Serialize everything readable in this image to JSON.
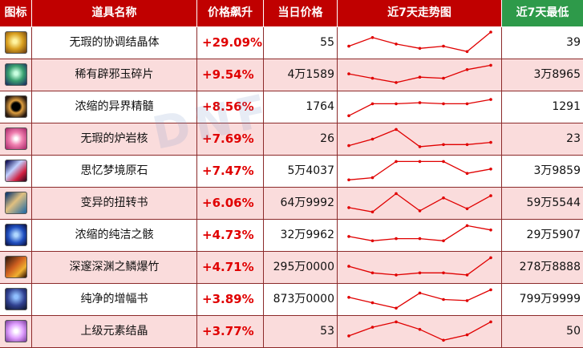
{
  "colors": {
    "header_bg": "#c00000",
    "header_last_bg": "#2e9a4a",
    "row_pink": "#fadcdc",
    "row_white": "#ffffff",
    "trend_line": "#e00000",
    "rise_text": "#e00000"
  },
  "header": {
    "icon": "图标",
    "name": "道具名称",
    "rise": "价格飙升",
    "price": "当日价格",
    "trend": "近7天走势图",
    "min": "近7天最低"
  },
  "rows": [
    {
      "icon": "crystal-icon",
      "name": "无瑕的协调结晶体",
      "rise": "+29.09%",
      "price": "55",
      "min": "39",
      "trend": [
        0.35,
        0.75,
        0.45,
        0.25,
        0.35,
        0.1,
        1.0
      ]
    },
    {
      "icon": "jade-orb-icon",
      "name": "稀有辟邪玉碎片",
      "rise": "+9.54%",
      "price": "4万1589",
      "min": "3万8965",
      "trend": [
        0.55,
        0.35,
        0.15,
        0.4,
        0.35,
        0.75,
        0.95
      ]
    },
    {
      "icon": "dark-orb-icon",
      "name": "浓缩的异界精髓",
      "rise": "+8.56%",
      "price": "1764",
      "min": "1291",
      "trend": [
        0.1,
        0.65,
        0.65,
        0.7,
        0.65,
        0.65,
        0.85
      ]
    },
    {
      "icon": "rose-icon",
      "name": "无瑕的炉岩核",
      "rise": "+7.69%",
      "price": "26",
      "min": "23",
      "trend": [
        0.2,
        0.5,
        0.95,
        0.15,
        0.25,
        0.25,
        0.35
      ]
    },
    {
      "icon": "wing-icon",
      "name": "思忆梦境原石",
      "rise": "+7.47%",
      "price": "5万4037",
      "min": "3万9859",
      "trend": [
        0.1,
        0.2,
        0.95,
        0.95,
        0.95,
        0.4,
        0.6
      ]
    },
    {
      "icon": "book-icon",
      "name": "变异的扭转书",
      "rise": "+6.06%",
      "price": "64万9992",
      "min": "59万5544",
      "trend": [
        0.3,
        0.1,
        0.95,
        0.15,
        0.75,
        0.25,
        0.85
      ]
    },
    {
      "icon": "blue-swirl-icon",
      "name": "浓缩的纯洁之骸",
      "rise": "+4.73%",
      "price": "32万9962",
      "min": "29万5907",
      "trend": [
        0.45,
        0.25,
        0.35,
        0.35,
        0.25,
        0.95,
        0.75
      ]
    },
    {
      "icon": "bamboo-icon",
      "name": "深邃深渊之鳞爆竹",
      "rise": "+4.71%",
      "price": "295万0000",
      "min": "278万8888",
      "trend": [
        0.55,
        0.25,
        0.15,
        0.25,
        0.25,
        0.15,
        0.95
      ]
    },
    {
      "icon": "lantern-icon",
      "name": "纯净的增幅书",
      "rise": "+3.89%",
      "price": "873万0000",
      "min": "799万9999",
      "trend": [
        0.6,
        0.35,
        0.1,
        0.8,
        0.5,
        0.45,
        0.95
      ]
    },
    {
      "icon": "pink-gem-icon",
      "name": "上级元素结晶",
      "rise": "+3.77%",
      "price": "53",
      "min": "50",
      "trend": [
        0.3,
        0.7,
        0.95,
        0.6,
        0.1,
        0.35,
        0.95
      ]
    }
  ]
}
